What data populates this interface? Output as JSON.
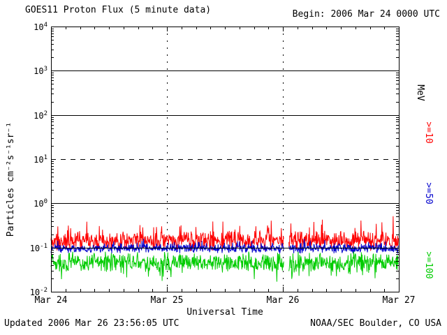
{
  "chart_data": {
    "type": "line",
    "title": "GOES11 Proton Flux (5 minute data)",
    "begin_label": "Begin: 2006 Mar 24 0000 UTC",
    "xlabel": "Universal Time",
    "ylabel": "Particles cm⁻²s⁻¹sr⁻¹",
    "unit_label": "MeV",
    "x_tick_labels": [
      "Mar 24",
      "Mar 25",
      "Mar 26",
      "Mar 27"
    ],
    "y_tick_exponents": [
      4,
      3,
      2,
      1,
      0,
      -1,
      -2
    ],
    "y_log_min": -2,
    "y_log_max": 4,
    "solid_gridline_decades": [
      3,
      2,
      0,
      -1
    ],
    "dashed_gridline_decades": [
      1
    ],
    "days": 3,
    "points_per_day": 288,
    "data_gaps_days": [
      [
        2.01,
        2.05
      ]
    ],
    "grid": "on",
    "legend_position": "right",
    "series": [
      {
        "name": ">=10",
        "unit": "MeV",
        "color": "#ff0000",
        "base_log": -0.85,
        "noise_log": 0.24,
        "spike_prob": 0.1,
        "spike_log": 0.42,
        "clamp_log": [
          -1.12,
          -0.28
        ],
        "seed": 11
      },
      {
        "name": ">=50",
        "unit": "MeV",
        "color": "#0000cc",
        "base_log": -1.02,
        "noise_log": 0.12,
        "spike_prob": 0.05,
        "spike_log": 0.16,
        "clamp_log": [
          -1.2,
          -0.72
        ],
        "seed": 23
      },
      {
        "name": ">=100",
        "unit": "MeV",
        "color": "#00cc00",
        "base_log": -1.33,
        "noise_log": 0.26,
        "spike_prob": 0.12,
        "spike_log": -0.32,
        "clamp_log": [
          -1.82,
          -1.02
        ],
        "seed": 37
      }
    ]
  },
  "footer": {
    "updated": "Updated 2006 Mar 26 23:56:05 UTC",
    "credit": "NOAA/SEC Boulder, CO USA"
  }
}
